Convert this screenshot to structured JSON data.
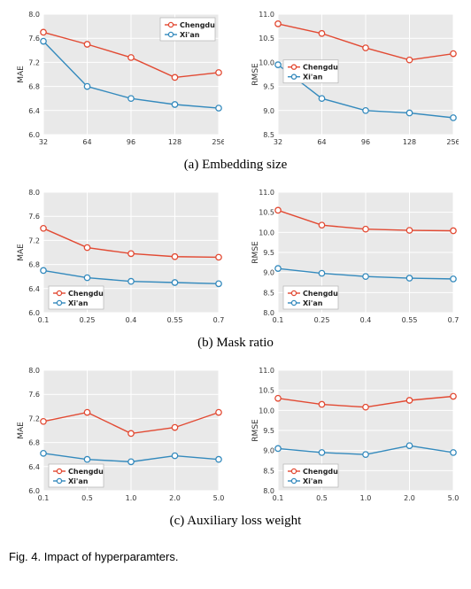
{
  "global": {
    "plot_bg": "#e9e9e9",
    "grid_color": "#ffffff",
    "series": [
      {
        "name": "Chengdu",
        "color": "#e24a33"
      },
      {
        "name": "Xi'an",
        "color": "#348abd"
      }
    ],
    "marker_radius": 3.2,
    "axis_fontsize": 8,
    "ylabel_fontsize": 9
  },
  "rows": [
    {
      "caption": "(a) Embedding size",
      "xticks": [
        "32",
        "64",
        "96",
        "128",
        "256"
      ],
      "left": {
        "ylabel": "MAE",
        "yticks": [
          6.0,
          6.4,
          6.8,
          7.2,
          7.6,
          8.0
        ],
        "ylim": [
          6.0,
          8.0
        ],
        "series": [
          {
            "name": "Chengdu",
            "y": [
              7.7,
              7.5,
              7.28,
              6.95,
              7.03
            ]
          },
          {
            "name": "Xi'an",
            "y": [
              7.55,
              6.8,
              6.6,
              6.5,
              6.44
            ]
          }
        ],
        "legend_pos": "upper-right"
      },
      "right": {
        "ylabel": "RMSE",
        "yticks": [
          8.5,
          9.0,
          9.5,
          10.0,
          10.5,
          11.0
        ],
        "ylim": [
          8.5,
          11.0
        ],
        "series": [
          {
            "name": "Chengdu",
            "y": [
              10.8,
              10.6,
              10.3,
              10.05,
              10.18
            ]
          },
          {
            "name": "Xi'an",
            "y": [
              9.95,
              9.25,
              9.0,
              8.95,
              8.85
            ]
          }
        ],
        "legend_pos": "middle-left"
      }
    },
    {
      "caption": "(b) Mask ratio",
      "xticks": [
        "0.1",
        "0.25",
        "0.4",
        "0.55",
        "0.7"
      ],
      "left": {
        "ylabel": "MAE",
        "yticks": [
          6.0,
          6.4,
          6.8,
          7.2,
          7.6,
          8.0
        ],
        "ylim": [
          6.0,
          8.0
        ],
        "series": [
          {
            "name": "Chengdu",
            "y": [
              7.4,
              7.08,
              6.98,
              6.93,
              6.92
            ]
          },
          {
            "name": "Xi'an",
            "y": [
              6.7,
              6.58,
              6.52,
              6.5,
              6.48
            ]
          }
        ],
        "legend_pos": "lower-left"
      },
      "right": {
        "ylabel": "RMSE",
        "yticks": [
          8.0,
          8.5,
          9.0,
          9.5,
          10.0,
          10.5,
          11.0
        ],
        "ylim": [
          8.0,
          11.0
        ],
        "series": [
          {
            "name": "Chengdu",
            "y": [
              10.55,
              10.18,
              10.08,
              10.05,
              10.04
            ]
          },
          {
            "name": "Xi'an",
            "y": [
              9.1,
              8.98,
              8.9,
              8.86,
              8.84
            ]
          }
        ],
        "legend_pos": "lower-left"
      }
    },
    {
      "caption": "(c) Auxiliary loss weight",
      "xticks": [
        "0.1",
        "0.5",
        "1.0",
        "2.0",
        "5.0"
      ],
      "left": {
        "ylabel": "MAE",
        "yticks": [
          6.0,
          6.4,
          6.8,
          7.2,
          7.6,
          8.0
        ],
        "ylim": [
          6.0,
          8.0
        ],
        "series": [
          {
            "name": "Chengdu",
            "y": [
              7.15,
              7.3,
              6.95,
              7.05,
              7.3
            ]
          },
          {
            "name": "Xi'an",
            "y": [
              6.62,
              6.52,
              6.48,
              6.58,
              6.52
            ]
          }
        ],
        "legend_pos": "lower-left"
      },
      "right": {
        "ylabel": "RMSE",
        "yticks": [
          8.0,
          8.5,
          9.0,
          9.5,
          10.0,
          10.5,
          11.0
        ],
        "ylim": [
          8.0,
          11.0
        ],
        "series": [
          {
            "name": "Chengdu",
            "y": [
              10.3,
              10.15,
              10.08,
              10.25,
              10.35
            ]
          },
          {
            "name": "Xi'an",
            "y": [
              9.05,
              8.95,
              8.9,
              9.12,
              8.95
            ]
          }
        ],
        "legend_pos": "lower-left"
      }
    }
  ],
  "figure_caption": "Fig. 4. Impact of hyperparamters."
}
